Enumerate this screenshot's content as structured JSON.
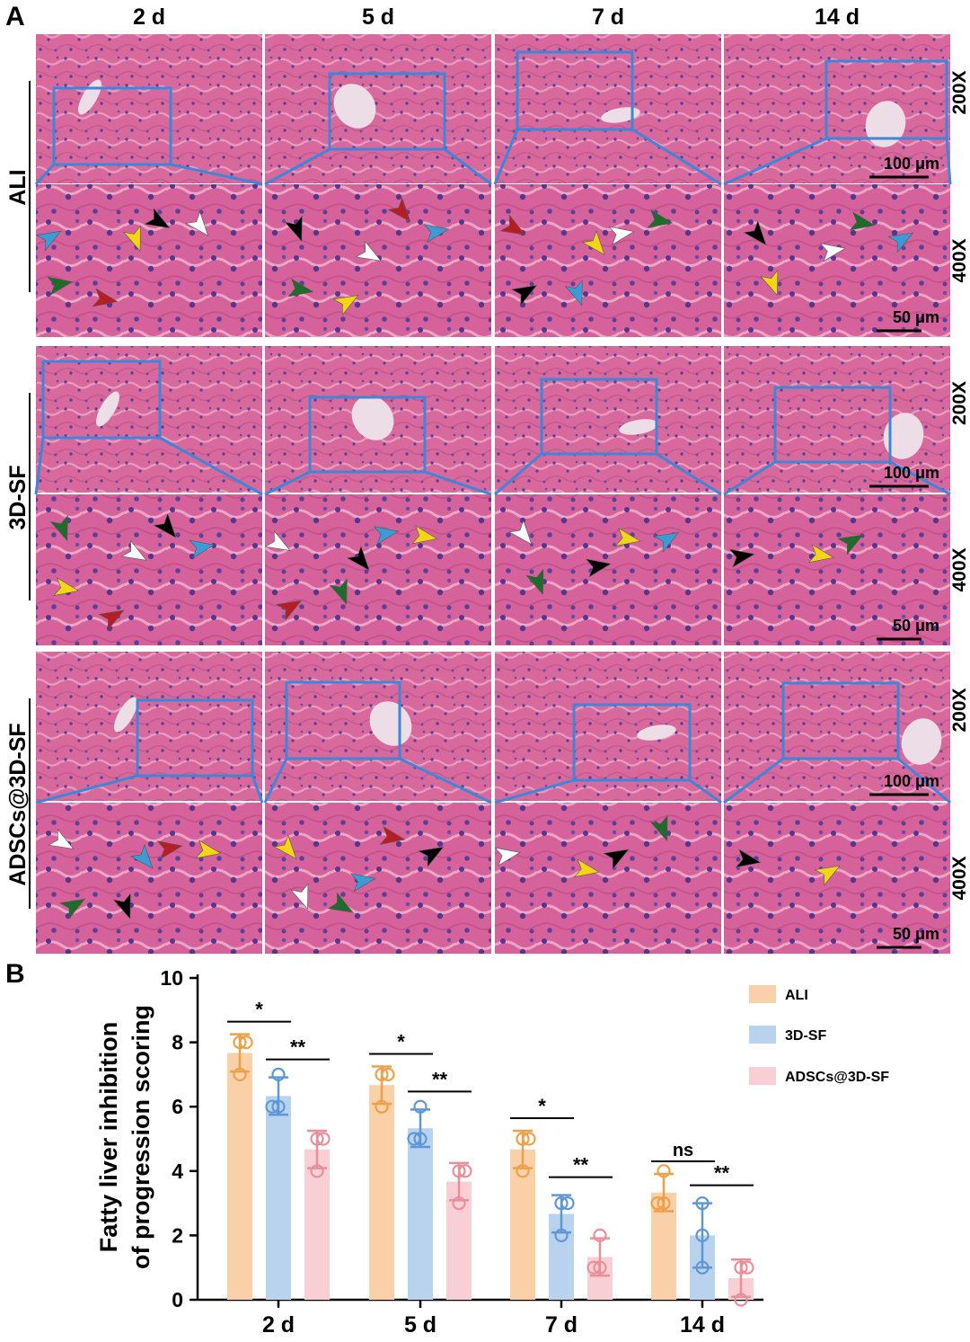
{
  "panel_a": {
    "letter": "A",
    "columns": [
      "2 d",
      "5 d",
      "7 d",
      "14 d"
    ],
    "groups": [
      "ALI",
      "3D-SF",
      "ADSCs@3D-SF"
    ],
    "mag_low": "200X",
    "mag_high": "400X",
    "scale_low": "100 μm",
    "scale_high": "50 μm",
    "arrow_colors": {
      "black": "#000000",
      "white": "#ffffff",
      "yellow": "#f2d515",
      "red": "#b51f24",
      "green": "#1f6b2b",
      "blue": "#3b9bd6"
    },
    "arrows": [
      [
        [
          [
            "blue",
            "yellow",
            "black",
            "white",
            "green",
            "red"
          ],
          [
            "black",
            "white",
            "red",
            "blue",
            "green",
            "yellow"
          ],
          [
            "red",
            "yellow",
            "white",
            "green",
            "black",
            "blue"
          ],
          [
            "black",
            "white",
            "green",
            "blue",
            "yellow"
          ]
        ],
        [
          [
            "green",
            "white",
            "black",
            "blue",
            "yellow",
            "red"
          ],
          [
            "white",
            "black",
            "blue",
            "yellow",
            "red",
            "green"
          ],
          [
            "white",
            "black",
            "yellow",
            "blue",
            "green"
          ],
          [
            "black",
            "yellow",
            "green"
          ]
        ],
        [
          [
            "white",
            "blue",
            "red",
            "yellow",
            "green",
            "black"
          ],
          [
            "yellow",
            "blue",
            "red",
            "black",
            "white",
            "green"
          ],
          [
            "white",
            "yellow",
            "black",
            "green"
          ],
          [
            "black",
            "yellow"
          ]
        ]
      ]
    ]
  },
  "chart": {
    "letter": "B",
    "ylabel_lines": [
      "Fatty liver inhibition",
      "of progression scoring"
    ],
    "yticks": [
      "0",
      "2",
      "4",
      "6",
      "8",
      "10"
    ],
    "xtick_labels": [
      "2 d",
      "5 d",
      "7 d",
      "14 d"
    ],
    "legend": [
      "ALI",
      "3D-SF",
      "ADSCs@3D-SF"
    ],
    "sig_labels": [
      "*",
      "**",
      "*",
      "**",
      "*",
      "**",
      "ns",
      "**"
    ]
  },
  "chart_data": {
    "type": "bar",
    "categories": [
      "2 d",
      "5 d",
      "7 d",
      "14 d"
    ],
    "ylabel": "Fatty liver inhibition of progression scoring",
    "ylim": [
      0,
      10
    ],
    "yticks": [
      0,
      2,
      4,
      6,
      8,
      10
    ],
    "grid": false,
    "legend": "top-right",
    "colors": {
      "ALI": "#f9d0a8",
      "3D-SF": "#b9d3ee",
      "ADSCs@3D-SF": "#f7cfd4"
    },
    "point_colors": {
      "ALI": "#eda04a",
      "3D-SF": "#5e97d6",
      "ADSCs@3D-SF": "#e98f99"
    },
    "series": [
      {
        "name": "ALI",
        "values": [
          7.67,
          6.67,
          4.67,
          3.33
        ],
        "errors": [
          0.58,
          0.58,
          0.58,
          0.58
        ],
        "points": [
          [
            7,
            8,
            8
          ],
          [
            6,
            7,
            7
          ],
          [
            4,
            5,
            5
          ],
          [
            3,
            3,
            4
          ]
        ]
      },
      {
        "name": "3D-SF",
        "values": [
          6.33,
          5.33,
          2.67,
          2.0
        ],
        "errors": [
          0.58,
          0.58,
          0.58,
          1.0
        ],
        "points": [
          [
            6,
            6,
            7
          ],
          [
            5,
            5,
            6
          ],
          [
            2,
            3,
            3
          ],
          [
            1,
            2,
            3
          ]
        ]
      },
      {
        "name": "ADSCs@3D-SF",
        "values": [
          4.67,
          3.67,
          1.33,
          0.67
        ],
        "errors": [
          0.58,
          0.58,
          0.58,
          0.58
        ],
        "points": [
          [
            4,
            5,
            5
          ],
          [
            3,
            4,
            4
          ],
          [
            1,
            1,
            2
          ],
          [
            0,
            1,
            1
          ]
        ]
      }
    ],
    "significance": [
      {
        "category": "2 d",
        "pair": [
          "ALI",
          "3D-SF"
        ],
        "label": "*"
      },
      {
        "category": "2 d",
        "pair": [
          "3D-SF",
          "ADSCs@3D-SF"
        ],
        "label": "**"
      },
      {
        "category": "5 d",
        "pair": [
          "ALI",
          "3D-SF"
        ],
        "label": "*"
      },
      {
        "category": "5 d",
        "pair": [
          "3D-SF",
          "ADSCs@3D-SF"
        ],
        "label": "**"
      },
      {
        "category": "7 d",
        "pair": [
          "ALI",
          "3D-SF"
        ],
        "label": "*"
      },
      {
        "category": "7 d",
        "pair": [
          "3D-SF",
          "ADSCs@3D-SF"
        ],
        "label": "**"
      },
      {
        "category": "14 d",
        "pair": [
          "ALI",
          "3D-SF"
        ],
        "label": "ns"
      },
      {
        "category": "14 d",
        "pair": [
          "3D-SF",
          "ADSCs@3D-SF"
        ],
        "label": "**"
      }
    ]
  }
}
